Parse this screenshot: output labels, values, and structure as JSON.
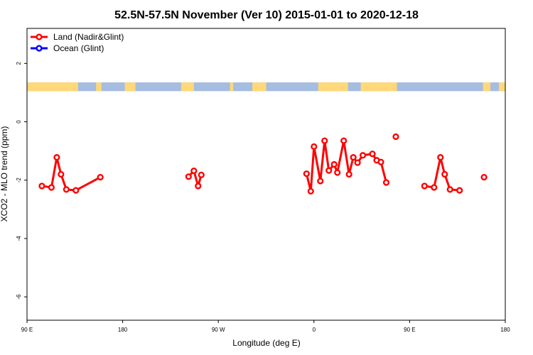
{
  "chart_data": {
    "type": "line",
    "title": "52.5N-57.5N November (Ver 10)   2015-01-01 to 2020-12-18",
    "xlabel": "Longitude (deg E)",
    "ylabel": "XCO2 - MLO trend (ppm)",
    "xlim": [
      90,
      540
    ],
    "ylim": [
      -6.8,
      3.2
    ],
    "x_ticks": [
      {
        "value": 90,
        "label": "90 E"
      },
      {
        "value": 180,
        "label": "180"
      },
      {
        "value": 270,
        "label": "90 W"
      },
      {
        "value": 360,
        "label": "0"
      },
      {
        "value": 450,
        "label": "90 E"
      },
      {
        "value": 540,
        "label": "180"
      }
    ],
    "y_ticks": [
      {
        "value": 2,
        "label": "2"
      },
      {
        "value": 0,
        "label": "0"
      },
      {
        "value": -2,
        "label": "-2"
      },
      {
        "value": -4,
        "label": "-4"
      },
      {
        "value": -6,
        "label": "-6"
      }
    ],
    "legend": {
      "position": "top-left",
      "entries": [
        {
          "label": "Land (Nadir&Glint)",
          "color": "#ff0000"
        },
        {
          "label": "Ocean (Glint)",
          "color": "#0000ff"
        }
      ]
    },
    "land_sea_band": {
      "y_range": [
        1.05,
        1.35
      ],
      "land_color": "#ffd87a",
      "ocean_color": "#a5bde0",
      "land_intervals": [
        [
          90,
          138
        ],
        [
          155,
          160
        ],
        [
          182,
          192
        ],
        [
          235,
          247
        ],
        [
          281,
          284
        ],
        [
          302,
          315
        ],
        [
          364,
          392
        ],
        [
          404,
          438
        ],
        [
          519,
          526
        ],
        [
          534,
          540
        ]
      ]
    },
    "series": [
      {
        "name": "Land (Nadir&Glint)",
        "color": "#ff0000",
        "segments": [
          [
            [
              104,
              -2.2
            ],
            [
              113,
              -2.25
            ],
            [
              118,
              -1.22
            ],
            [
              122,
              -1.8
            ],
            [
              127,
              -2.32
            ],
            [
              136,
              -2.35
            ],
            [
              159,
              -1.9
            ]
          ],
          [
            [
              242,
              -1.88
            ],
            [
              247,
              -1.68
            ],
            [
              251,
              -2.2
            ],
            [
              254,
              -1.82
            ]
          ],
          [
            [
              353,
              -1.78
            ],
            [
              357,
              -2.38
            ],
            [
              360,
              -0.85
            ],
            [
              366,
              -2.03
            ],
            [
              370,
              -0.65
            ],
            [
              374,
              -1.67
            ],
            [
              379,
              -1.46
            ],
            [
              382,
              -1.74
            ],
            [
              388,
              -0.65
            ],
            [
              393,
              -1.8
            ],
            [
              397,
              -1.22
            ],
            [
              401,
              -1.4
            ],
            [
              406,
              -1.15
            ],
            [
              415,
              -1.1
            ],
            [
              419,
              -1.32
            ],
            [
              423,
              -1.38
            ],
            [
              428,
              -2.08
            ]
          ],
          [
            [
              437,
              -0.51
            ]
          ],
          [
            [
              464,
              -2.2
            ],
            [
              473,
              -2.25
            ],
            [
              479,
              -1.22
            ],
            [
              483,
              -1.8
            ],
            [
              488,
              -2.32
            ],
            [
              497,
              -2.35
            ]
          ],
          [
            [
              520,
              -1.9
            ]
          ]
        ]
      }
    ]
  }
}
